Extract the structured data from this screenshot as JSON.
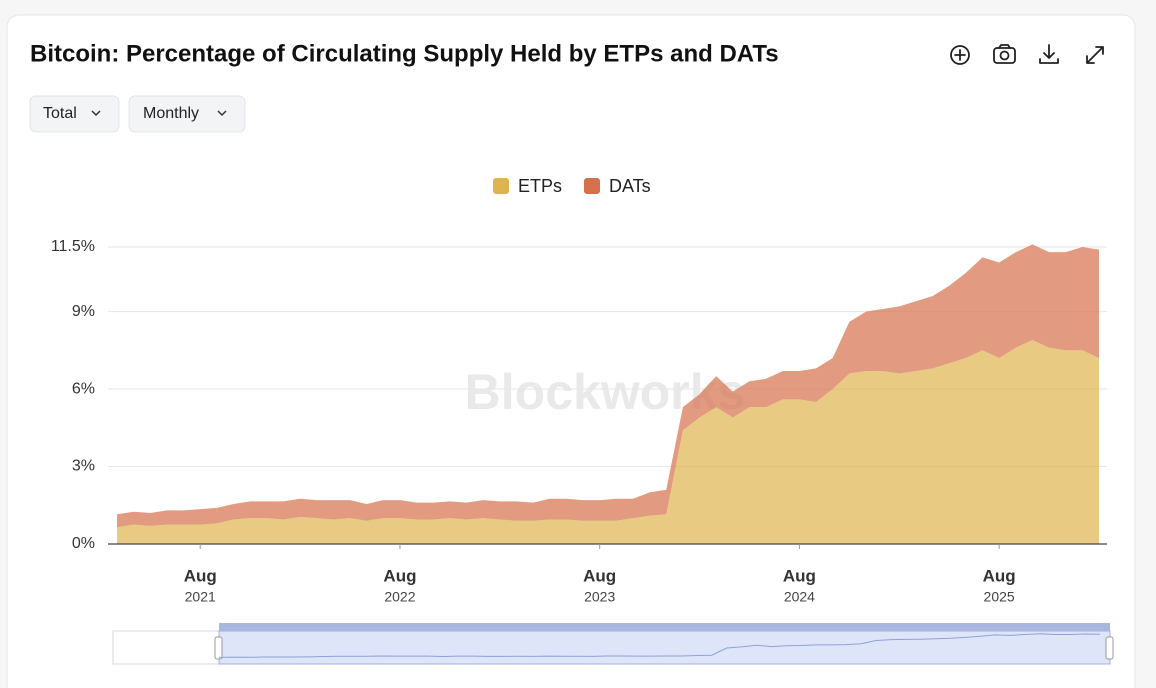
{
  "chart_data": {
    "type": "stacked_area",
    "title": "Bitcoin: Percentage of Circulating Supply Held by ETPs and DATs",
    "controls": [
      "Total",
      "Monthly"
    ],
    "watermark": "Blockworks",
    "x": [
      "2021-03",
      "2021-04",
      "2021-05",
      "2021-06",
      "2021-07",
      "2021-08",
      "2021-09",
      "2021-10",
      "2021-11",
      "2021-12",
      "2022-01",
      "2022-02",
      "2022-03",
      "2022-04",
      "2022-05",
      "2022-06",
      "2022-07",
      "2022-08",
      "2022-09",
      "2022-10",
      "2022-11",
      "2022-12",
      "2023-01",
      "2023-02",
      "2023-03",
      "2023-04",
      "2023-05",
      "2023-06",
      "2023-07",
      "2023-08",
      "2023-09",
      "2023-10",
      "2023-11",
      "2023-12",
      "2024-01",
      "2024-02",
      "2024-03",
      "2024-04",
      "2024-05",
      "2024-06",
      "2024-07",
      "2024-08",
      "2024-09",
      "2024-10",
      "2024-11",
      "2024-12",
      "2025-01",
      "2025-02",
      "2025-03",
      "2025-04",
      "2025-05",
      "2025-06",
      "2025-07",
      "2025-08",
      "2025-09",
      "2025-10",
      "2025-11",
      "2025-12",
      "2026-01",
      "2026-02"
    ],
    "series": [
      {
        "name": "ETPs",
        "color": "#deb44e",
        "values": [
          0.65,
          0.75,
          0.7,
          0.75,
          0.75,
          0.75,
          0.8,
          0.95,
          1.0,
          1.0,
          0.95,
          1.05,
          1.0,
          0.95,
          1.0,
          0.9,
          1.0,
          1.0,
          0.95,
          0.95,
          1.0,
          0.95,
          1.0,
          0.95,
          0.9,
          0.9,
          0.95,
          0.95,
          0.9,
          0.9,
          0.9,
          1.0,
          1.1,
          1.15,
          4.4,
          4.9,
          5.3,
          4.9,
          5.3,
          5.3,
          5.6,
          5.6,
          5.5,
          6.0,
          6.6,
          6.7,
          6.7,
          6.6,
          6.7,
          6.8,
          7.0,
          7.2,
          7.5,
          7.2,
          7.6,
          7.9,
          7.6,
          7.5,
          7.5,
          7.2
        ]
      },
      {
        "name": "DATs",
        "color": "#d5714b",
        "values": [
          0.5,
          0.5,
          0.5,
          0.55,
          0.55,
          0.6,
          0.6,
          0.6,
          0.65,
          0.65,
          0.7,
          0.7,
          0.7,
          0.75,
          0.7,
          0.65,
          0.7,
          0.7,
          0.65,
          0.65,
          0.65,
          0.65,
          0.7,
          0.7,
          0.75,
          0.7,
          0.8,
          0.8,
          0.8,
          0.8,
          0.85,
          0.75,
          0.9,
          0.95,
          0.9,
          0.9,
          1.2,
          1.0,
          1.0,
          1.1,
          1.1,
          1.1,
          1.3,
          1.2,
          2.0,
          2.3,
          2.4,
          2.6,
          2.7,
          2.8,
          3.0,
          3.3,
          3.6,
          3.7,
          3.7,
          3.7,
          3.7,
          3.8,
          4.0,
          4.2
        ]
      }
    ],
    "ylim": [
      0,
      11.5
    ],
    "yticks": [
      {
        "value": 0,
        "label": "0%"
      },
      {
        "value": 3,
        "label": "3%"
      },
      {
        "value": 6,
        "label": "6%"
      },
      {
        "value": 9,
        "label": "9%"
      },
      {
        "value": 11.5,
        "label": "11.5%"
      }
    ],
    "xticks": [
      {
        "value": "2021-08",
        "label": "Aug",
        "year": "2021"
      },
      {
        "value": "2022-08",
        "label": "Aug",
        "year": "2022"
      },
      {
        "value": "2023-08",
        "label": "Aug",
        "year": "2023"
      },
      {
        "value": "2024-08",
        "label": "Aug",
        "year": "2024"
      },
      {
        "value": "2025-08",
        "label": "Aug",
        "year": "2025"
      }
    ],
    "grid": true,
    "legend": "top"
  }
}
